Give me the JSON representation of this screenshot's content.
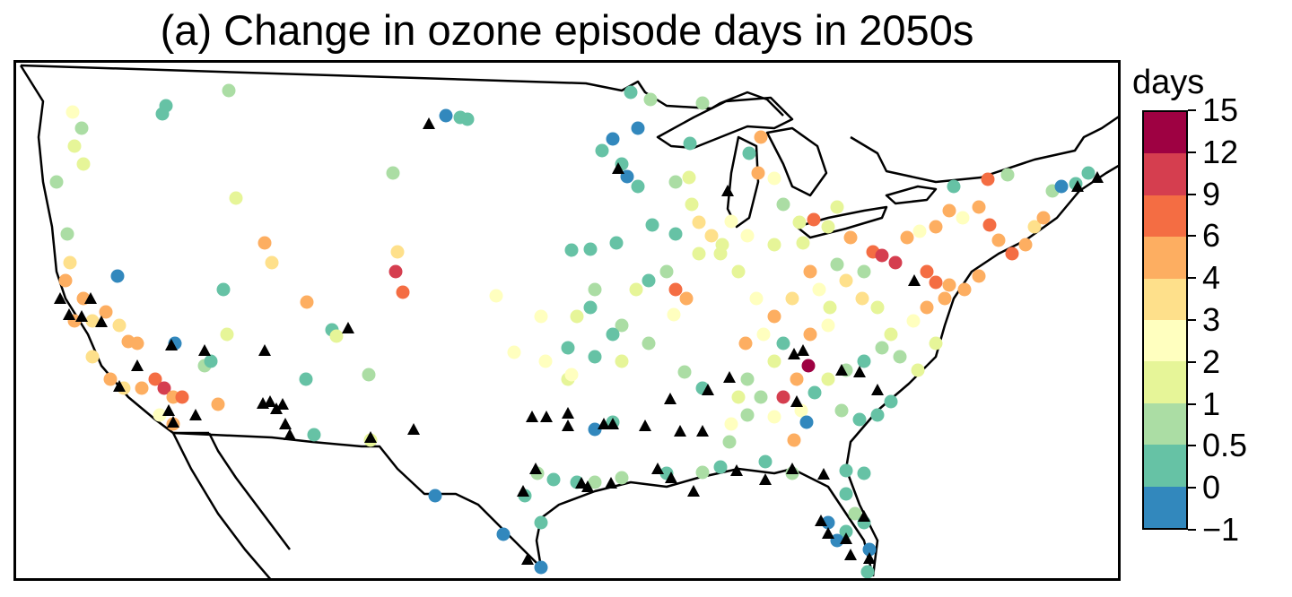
{
  "title": "(a) Change in ozone episode days in 2050s",
  "legend": {
    "unit": "days",
    "ticks": [
      "−1",
      "0",
      "0.5",
      "1",
      "2",
      "3",
      "4",
      "6",
      "9",
      "12",
      "15"
    ],
    "colors": [
      "#3288bd",
      "#66c2a5",
      "#abdda4",
      "#e6f598",
      "#ffffbf",
      "#fee08b",
      "#fdae61",
      "#f46d43",
      "#d53e4f",
      "#9e0142"
    ]
  },
  "map": {
    "region": "contiguous United States",
    "marker_legend": {
      "circle": "station colored by change in episode days",
      "triangle": "station marker"
    }
  }
}
